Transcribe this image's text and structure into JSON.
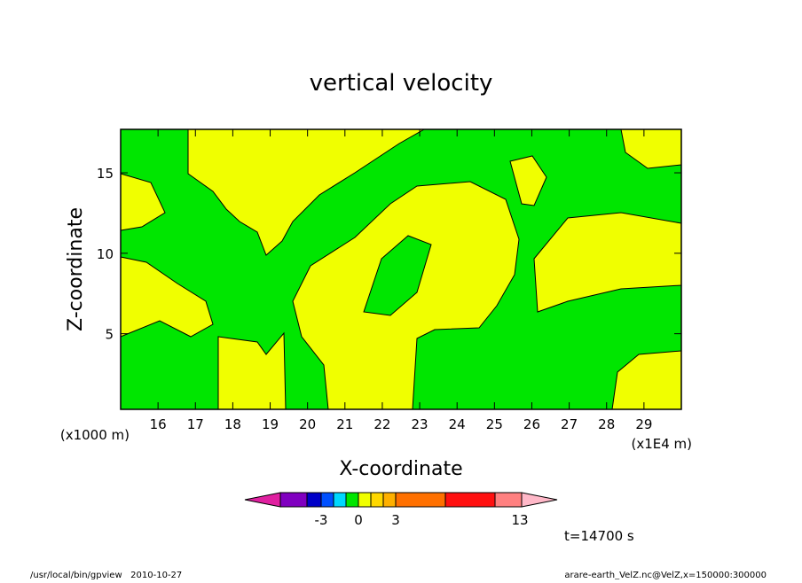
{
  "chart_data": {
    "type": "contour",
    "title": "vertical velocity",
    "x_label": "X-coordinate",
    "y_label": "Z-coordinate",
    "x_unit": "(x1E4 m)",
    "y_unit": "(x1000 m)",
    "xlim": [
      15,
      30
    ],
    "xticks": [
      16,
      17,
      18,
      19,
      20,
      21,
      22,
      23,
      24,
      25,
      26,
      27,
      28,
      29
    ],
    "ylim": [
      0.3,
      17.7
    ],
    "yticks": [
      5,
      10,
      15
    ],
    "colorbar_ticks": [
      -3,
      0,
      3,
      13
    ],
    "time_label": "t=14700 s",
    "footer_left": "/usr/local/bin/gpview   2010-10-27",
    "footer_right": "arare-earth_VelZ.nc@VelZ,x=150000:300000"
  }
}
